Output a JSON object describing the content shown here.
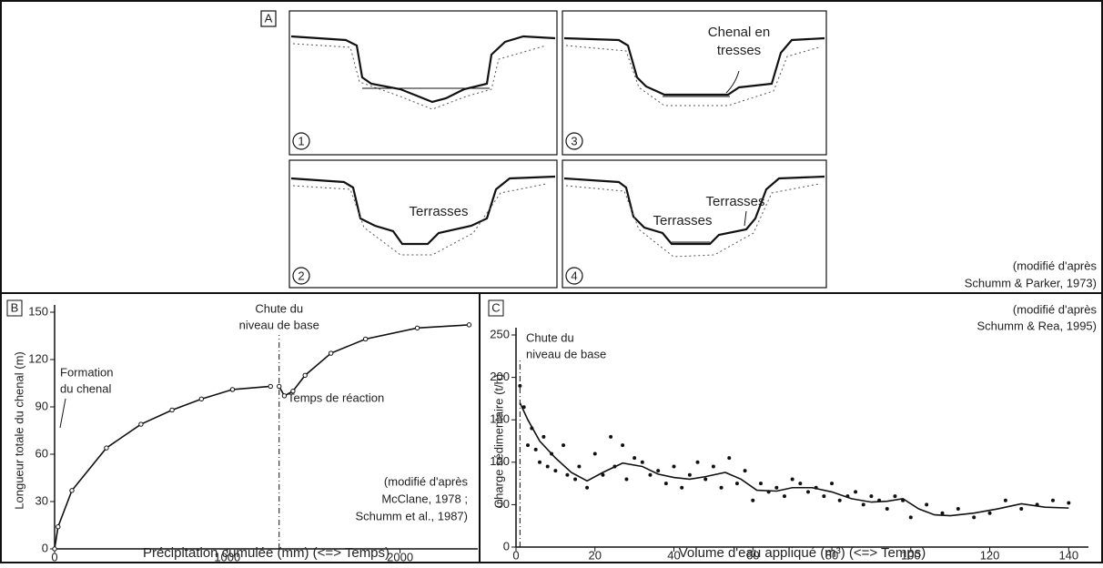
{
  "panel_a": {
    "label": "A",
    "sub_labels": [
      "1",
      "2",
      "3",
      "4"
    ],
    "braided_label": [
      "Chenal en",
      "tresses"
    ],
    "terraces_2": "Terrasses",
    "terraces_4a": "Terrasses",
    "terraces_4b": "Terrasses",
    "source": [
      "(modifié d'après",
      "Schumm & Parker, 1973)"
    ]
  },
  "chart_data": [
    {
      "type": "line",
      "panel_label": "B",
      "x_label": "Précipitation cumulée (mm) (<=> Temps)",
      "y_label": "Longueur totale du chenal (m)",
      "xlim": [
        0,
        2450
      ],
      "xticks": [
        0,
        1000,
        2000
      ],
      "ylim": [
        0,
        150
      ],
      "yticks": [
        0,
        30,
        60,
        90,
        120,
        150
      ],
      "reference_x": 1300,
      "annotations": {
        "formation": [
          "Formation",
          "du chenal"
        ],
        "drop": [
          "Chute du",
          "niveau de base"
        ],
        "reaction": "Temps de réaction",
        "source": [
          "(modifié d'après",
          "McClane, 1978 ;",
          "Schumm et al., 1987)"
        ]
      },
      "series": [
        {
          "color": "#111",
          "marker": true,
          "x": [
            0,
            20,
            100,
            300,
            500,
            680,
            850,
            1030,
            1250
          ],
          "values": [
            0,
            14,
            37,
            64,
            79,
            88,
            95,
            101,
            103
          ]
        },
        {
          "color": "#111",
          "marker": true,
          "x": [
            1300,
            1330,
            1380,
            1450,
            1600,
            1800,
            2100,
            2400
          ],
          "values": [
            103,
            97,
            100,
            110,
            124,
            133,
            140,
            142
          ]
        }
      ]
    },
    {
      "type": "scatter",
      "panel_label": "C",
      "x_label": "Volume d'eau appliqué (m³) (<=> Temps)",
      "y_label": "Charge sédimentaire (t/h)",
      "xlim": [
        0,
        145
      ],
      "xticks": [
        0,
        20,
        40,
        60,
        80,
        100,
        120,
        140
      ],
      "ylim": [
        0,
        250
      ],
      "yticks": [
        0,
        50,
        100,
        150,
        200,
        250
      ],
      "reference_x": 1,
      "annotations": {
        "drop": [
          "Chute du",
          "niveau de base"
        ],
        "source": [
          "(modifié d'après",
          "Schumm & Rea, 1995)"
        ]
      },
      "series": [
        {
          "color": "#111",
          "marker": true,
          "line": false,
          "x": [
            1,
            2,
            3,
            4,
            5,
            6,
            7,
            8,
            9,
            10,
            12,
            13,
            15,
            16,
            18,
            20,
            22,
            24,
            25,
            27,
            28,
            30,
            32,
            34,
            36,
            38,
            40,
            42,
            44,
            46,
            48,
            50,
            52,
            54,
            56,
            58,
            60,
            62,
            64,
            66,
            68,
            70,
            72,
            74,
            76,
            78,
            80,
            82,
            84,
            86,
            88,
            90,
            92,
            94,
            96,
            98,
            100,
            104,
            108,
            112,
            116,
            120,
            124,
            128,
            132,
            136,
            140
          ],
          "values": [
            190,
            165,
            120,
            140,
            115,
            100,
            130,
            95,
            110,
            90,
            120,
            85,
            80,
            95,
            70,
            110,
            85,
            130,
            95,
            120,
            80,
            105,
            100,
            85,
            90,
            75,
            95,
            70,
            85,
            100,
            80,
            95,
            70,
            105,
            75,
            90,
            55,
            75,
            65,
            70,
            60,
            80,
            75,
            65,
            70,
            60,
            75,
            55,
            60,
            65,
            50,
            60,
            55,
            45,
            60,
            55,
            35,
            50,
            40,
            45,
            35,
            40,
            55,
            45,
            50,
            55,
            52
          ]
        },
        {
          "color": "#111",
          "marker": false,
          "line": true,
          "x": [
            1,
            3,
            6,
            10,
            14,
            18,
            22,
            27,
            32,
            36,
            40,
            44,
            48,
            53,
            57,
            61,
            66,
            70,
            75,
            80,
            85,
            90,
            94,
            98,
            102,
            106,
            110,
            116,
            122,
            128,
            134,
            140
          ],
          "values": [
            170,
            150,
            125,
            105,
            88,
            78,
            88,
            99,
            95,
            86,
            82,
            80,
            83,
            88,
            80,
            67,
            66,
            70,
            70,
            65,
            57,
            53,
            54,
            57,
            45,
            38,
            37,
            40,
            45,
            51,
            47,
            46
          ]
        }
      ]
    }
  ]
}
